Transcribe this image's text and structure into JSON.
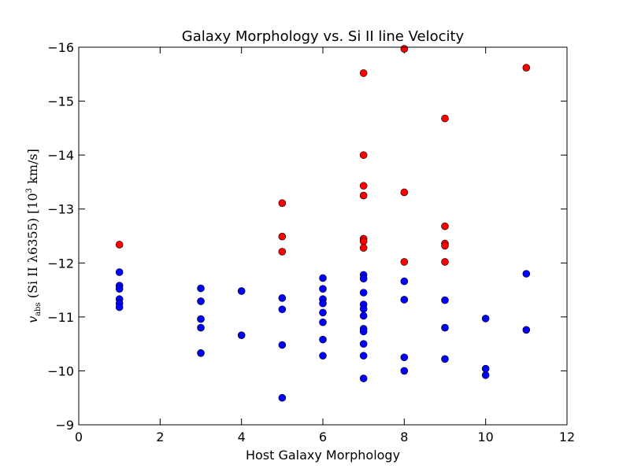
{
  "chart_data": {
    "type": "scatter",
    "title": "Galaxy Morphology vs. Si II line Velocity",
    "xlabel": "Host Galaxy Morphology",
    "ylabel_parts": {
      "var": "v",
      "sub": "abs",
      "text": " (Si II λ6355) [10",
      "sup": "3",
      "unit": "  km/s]"
    },
    "xlim": [
      0,
      12
    ],
    "ylim": [
      -9,
      -16
    ],
    "y_inverted": true,
    "grid": false,
    "x_ticks": [
      0,
      2,
      4,
      6,
      8,
      10,
      12
    ],
    "y_ticks": [
      -9,
      -10,
      -11,
      -12,
      -13,
      -14,
      -15,
      -16
    ],
    "x_tick_labels": [
      "0",
      "2",
      "4",
      "6",
      "8",
      "10",
      "12"
    ],
    "y_tick_labels": [
      "−9",
      "−10",
      "−11",
      "−12",
      "−13",
      "−14",
      "−15",
      "−16"
    ],
    "series": [
      {
        "color": "#0000ff",
        "points": [
          [
            1,
            -11.83
          ],
          [
            1,
            -11.58
          ],
          [
            1,
            -11.52
          ],
          [
            1,
            -11.33
          ],
          [
            1,
            -11.25
          ],
          [
            1,
            -11.18
          ],
          [
            3,
            -11.53
          ],
          [
            3,
            -11.29
          ],
          [
            3,
            -10.96
          ],
          [
            3,
            -10.8
          ],
          [
            3,
            -10.33
          ],
          [
            4,
            -11.48
          ],
          [
            4,
            -10.66
          ],
          [
            5,
            -11.35
          ],
          [
            5,
            -11.14
          ],
          [
            5,
            -10.48
          ],
          [
            5,
            -9.5
          ],
          [
            6,
            -11.72
          ],
          [
            6,
            -11.52
          ],
          [
            6,
            -11.33
          ],
          [
            6,
            -11.25
          ],
          [
            6,
            -11.08
          ],
          [
            6,
            -10.9
          ],
          [
            6,
            -10.58
          ],
          [
            6,
            -10.28
          ],
          [
            7,
            -11.78
          ],
          [
            7,
            -11.71
          ],
          [
            7,
            -11.45
          ],
          [
            7,
            -11.23
          ],
          [
            7,
            -11.15
          ],
          [
            7,
            -11.02
          ],
          [
            7,
            -10.78
          ],
          [
            7,
            -10.73
          ],
          [
            7,
            -10.5
          ],
          [
            7,
            -10.28
          ],
          [
            7,
            -9.86
          ],
          [
            8,
            -11.66
          ],
          [
            8,
            -11.32
          ],
          [
            8,
            -10.25
          ],
          [
            8,
            -10.0
          ],
          [
            9,
            -11.31
          ],
          [
            9,
            -10.8
          ],
          [
            9,
            -10.22
          ],
          [
            10,
            -10.97
          ],
          [
            10,
            -10.04
          ],
          [
            10,
            -9.92
          ],
          [
            11,
            -11.8
          ],
          [
            11,
            -10.76
          ]
        ]
      },
      {
        "color": "#ff0000",
        "points": [
          [
            1,
            -12.34
          ],
          [
            5,
            -13.11
          ],
          [
            5,
            -12.49
          ],
          [
            5,
            -12.21
          ],
          [
            7,
            -15.52
          ],
          [
            7,
            -14.0
          ],
          [
            7,
            -13.43
          ],
          [
            7,
            -13.25
          ],
          [
            7,
            -12.45
          ],
          [
            7,
            -12.4
          ],
          [
            7,
            -12.28
          ],
          [
            8,
            -15.97
          ],
          [
            8,
            -13.31
          ],
          [
            8,
            -12.02
          ],
          [
            9,
            -14.68
          ],
          [
            9,
            -12.68
          ],
          [
            9,
            -12.36
          ],
          [
            9,
            -12.32
          ],
          [
            9,
            -12.02
          ],
          [
            11,
            -15.62
          ]
        ]
      }
    ]
  }
}
